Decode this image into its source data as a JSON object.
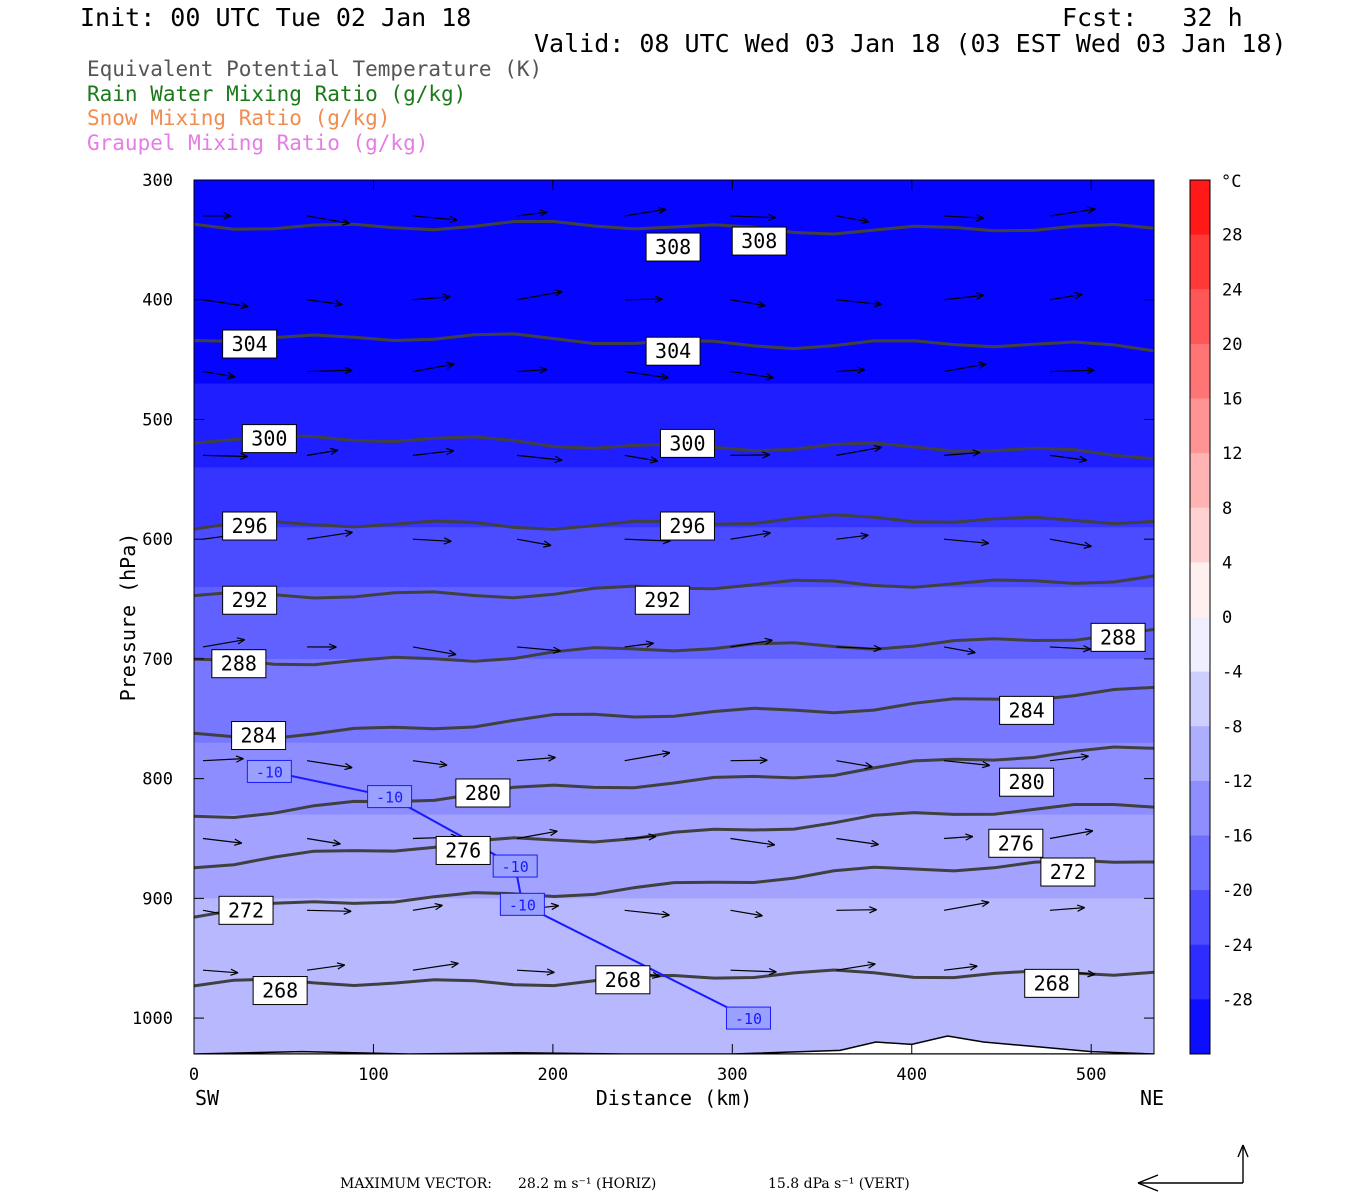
{
  "header": {
    "init": "Init: 00 UTC Tue 02 Jan 18",
    "fcst": "Fcst:   32 h",
    "valid": "Valid: 08 UTC Wed 03 Jan 18 (03 EST Wed 03 Jan 18)"
  },
  "fields": [
    {
      "label": "Equivalent Potential Temperature (K)",
      "color": "#555555"
    },
    {
      "label": "Rain Water Mixing Ratio (g/kg)",
      "color": "#1a7a1a"
    },
    {
      "label": "Snow Mixing Ratio (g/kg)",
      "color": "#f08c50"
    },
    {
      "label": "Graupel Mixing Ratio (g/kg)",
      "color": "#e67ce6"
    }
  ],
  "footer": {
    "max_vector_label": "MAXIMUM VECTOR:",
    "horiz": "28.2 m s⁻¹ (HORIZ)",
    "vert": "15.8 dPa s⁻¹ (VERT)"
  },
  "colorbar": {
    "unit": "°C",
    "labels": [
      "28",
      "24",
      "20",
      "16",
      "12",
      "8",
      "4",
      "0",
      "-4",
      "-8",
      "-12",
      "-16",
      "-20",
      "-24",
      "-28"
    ]
  },
  "chart_data": {
    "type": "heatmap",
    "description": "vertical cross section",
    "xlabel": "Distance (km)",
    "ylabel": "Pressure (hPa)",
    "xlim": [
      0,
      535
    ],
    "ylim": [
      1030,
      300
    ],
    "x_ticks": [
      0,
      100,
      200,
      300,
      400,
      500
    ],
    "y_ticks": [
      300,
      400,
      500,
      600,
      700,
      800,
      900,
      1000
    ],
    "x_endpoint_labels": [
      "SW",
      "NE"
    ],
    "theta_e_contours": [
      {
        "value": 308,
        "p_left": 337,
        "p_right": 342,
        "labels": [
          [
            267,
            356
          ],
          [
            315,
            351
          ]
        ]
      },
      {
        "value": 304,
        "p_left": 430,
        "p_right": 440,
        "labels": [
          [
            31,
            437
          ],
          [
            267,
            443
          ]
        ]
      },
      {
        "value": 300,
        "p_left": 515,
        "p_right": 528,
        "labels": [
          [
            42,
            516
          ],
          [
            275,
            520
          ]
        ]
      },
      {
        "value": 296,
        "p_left": 590,
        "p_right": 582,
        "labels": [
          [
            31,
            589
          ],
          [
            275,
            589
          ]
        ]
      },
      {
        "value": 292,
        "p_left": 650,
        "p_right": 632,
        "labels": [
          [
            31,
            651
          ],
          [
            261,
            651
          ]
        ]
      },
      {
        "value": 288,
        "p_left": 705,
        "p_right": 680,
        "labels": [
          [
            25,
            704
          ],
          [
            515,
            682
          ]
        ]
      },
      {
        "value": 284,
        "p_left": 765,
        "p_right": 728,
        "labels": [
          [
            36,
            764
          ],
          [
            464,
            743
          ]
        ]
      },
      {
        "value": 280,
        "p_left": 830,
        "p_right": 775,
        "labels": [
          [
            161,
            812
          ],
          [
            464,
            803
          ]
        ]
      },
      {
        "value": 276,
        "p_left": 870,
        "p_right": 820,
        "labels": [
          [
            150,
            860
          ],
          [
            458,
            854
          ]
        ]
      },
      {
        "value": 272,
        "p_left": 912,
        "p_right": 865,
        "labels": [
          [
            29,
            910
          ],
          [
            487,
            878
          ]
        ]
      },
      {
        "value": 268,
        "p_left": 973,
        "p_right": 960,
        "labels": [
          [
            48,
            977
          ],
          [
            239,
            968
          ],
          [
            478,
            971
          ]
        ]
      }
    ],
    "temperature_isotherm": {
      "value": -10,
      "labels": [
        [
          42,
          794
        ],
        [
          109,
          815
        ],
        [
          179,
          873
        ],
        [
          183,
          905
        ],
        [
          309,
          1000
        ]
      ]
    },
    "temperature_range_c": [
      -32,
      32
    ],
    "wind_vectors": "horizontal wind and omega vectors on a regular grid"
  }
}
